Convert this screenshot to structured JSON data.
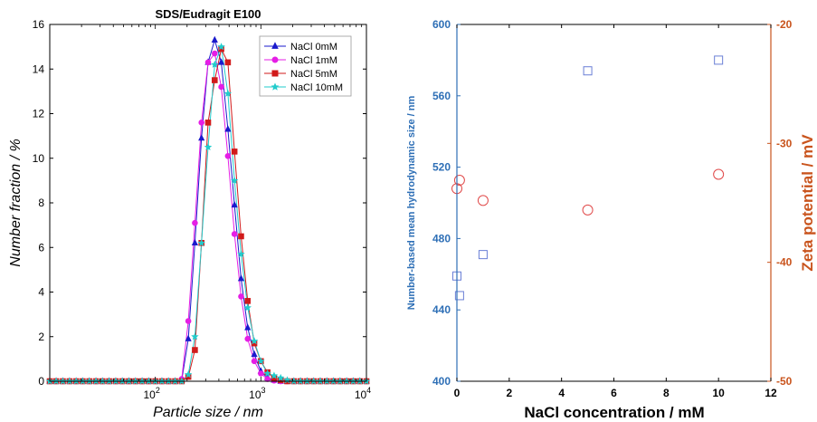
{
  "colors": {
    "s0": "#1a1acc",
    "s1": "#e51ee5",
    "s2": "#d11a1a",
    "s3": "#22cccc",
    "left_axis": "#2e6fb6",
    "right_axis": "#c9541d",
    "size_marker": "#6a7fd6",
    "zeta_marker": "#e04848"
  },
  "chart_data": [
    {
      "type": "line",
      "title": "SDS/Eudragit E100",
      "xlabel": "Particle size / nm",
      "ylabel": "Number fraction / %",
      "x_scale": "log",
      "xlim": [
        10,
        10000
      ],
      "ylim": [
        0,
        16
      ],
      "yticks": [
        "0",
        "2",
        "4",
        "6",
        "8",
        "10",
        "12",
        "14",
        "16"
      ],
      "xticks": [
        "10^2",
        "10^3",
        "10^4"
      ],
      "legend_position": "top-right",
      "x": [
        10.0,
        11.5,
        13.3,
        15.4,
        17.8,
        20.5,
        23.7,
        27.4,
        31.6,
        36.5,
        42.2,
        48.7,
        56.2,
        64.9,
        75.0,
        86.6,
        100.0,
        115.5,
        133.4,
        154.0,
        177.8,
        205.4,
        237.1,
        273.8,
        316.2,
        365.2,
        421.7,
        487.0,
        562.3,
        649.4,
        749.9,
        866.0,
        1000.0,
        1154.8,
        1333.5,
        1539.9,
        1778.3,
        2053.5,
        2371.4,
        2738.4,
        3162.3,
        3651.7,
        4217.0,
        4869.7,
        5623.4,
        6493.8,
        7498.9,
        8659.6,
        10000.0
      ],
      "series": [
        {
          "name": "NaCl 0mM",
          "marker": "triangle",
          "values": [
            0,
            0,
            0,
            0,
            0,
            0,
            0,
            0,
            0,
            0,
            0,
            0,
            0,
            0,
            0,
            0,
            0,
            0,
            0,
            0,
            0.05,
            1.9,
            6.2,
            10.9,
            14.3,
            15.3,
            14.3,
            11.3,
            7.9,
            4.6,
            2.4,
            1.2,
            0.45,
            0.15,
            0.05,
            0,
            0,
            0,
            0,
            0,
            0,
            0,
            0,
            0,
            0,
            0,
            0,
            0,
            0
          ]
        },
        {
          "name": "NaCl 1mM",
          "marker": "circle",
          "values": [
            0,
            0,
            0,
            0,
            0,
            0,
            0,
            0,
            0,
            0,
            0,
            0,
            0,
            0,
            0,
            0,
            0,
            0,
            0,
            0,
            0.1,
            2.7,
            7.1,
            11.6,
            14.3,
            14.7,
            13.2,
            10.1,
            6.6,
            3.8,
            1.9,
            0.9,
            0.35,
            0.1,
            0.03,
            0,
            0,
            0,
            0,
            0,
            0,
            0,
            0,
            0,
            0,
            0,
            0,
            0,
            0
          ]
        },
        {
          "name": "NaCl 5mM",
          "marker": "square",
          "values": [
            0,
            0,
            0,
            0,
            0,
            0,
            0,
            0,
            0,
            0,
            0,
            0,
            0,
            0,
            0,
            0,
            0,
            0,
            0,
            0,
            0,
            0.2,
            1.4,
            6.2,
            11.6,
            13.5,
            14.9,
            14.3,
            10.3,
            6.5,
            3.6,
            1.7,
            0.9,
            0.4,
            0.15,
            0.05,
            0,
            0,
            0,
            0,
            0,
            0,
            0,
            0,
            0,
            0,
            0,
            0,
            0
          ]
        },
        {
          "name": "NaCl 10mM",
          "marker": "star",
          "values": [
            0,
            0,
            0,
            0,
            0,
            0,
            0,
            0,
            0,
            0,
            0,
            0,
            0,
            0,
            0,
            0,
            0,
            0,
            0,
            0,
            0,
            0.3,
            2.0,
            6.2,
            10.5,
            14.2,
            15.0,
            12.9,
            9.0,
            5.7,
            3.3,
            1.8,
            0.9,
            0.35,
            0.25,
            0.15,
            0.05,
            0,
            0,
            0,
            0,
            0,
            0,
            0,
            0,
            0,
            0,
            0,
            0
          ]
        }
      ]
    },
    {
      "type": "scatter",
      "xlabel": "NaCl concentration / mM",
      "ylabel_left": "Number-based mean hydrodynamic size / nm",
      "ylabel_right": "Zeta potential / mV",
      "xlim": [
        0,
        12
      ],
      "ylim_left": [
        400,
        600
      ],
      "ylim_right": [
        -50,
        -20
      ],
      "xticks": [
        "0",
        "2",
        "4",
        "6",
        "8",
        "10",
        "12"
      ],
      "yticks_left": [
        "400",
        "440",
        "480",
        "520",
        "560",
        "600"
      ],
      "yticks_right": [
        "-50",
        "-40",
        "-30",
        "-20"
      ],
      "series": [
        {
          "axis": "left",
          "marker": "square",
          "points": [
            [
              0,
              459
            ],
            [
              0.1,
              448
            ],
            [
              1,
              471
            ],
            [
              5,
              574
            ],
            [
              10,
              580
            ]
          ]
        },
        {
          "axis": "right",
          "marker": "circle",
          "points": [
            [
              0,
              -33.8
            ],
            [
              0.1,
              -33.1
            ],
            [
              1,
              -34.8
            ],
            [
              5,
              -35.6
            ],
            [
              10,
              -32.6
            ]
          ]
        }
      ]
    }
  ]
}
